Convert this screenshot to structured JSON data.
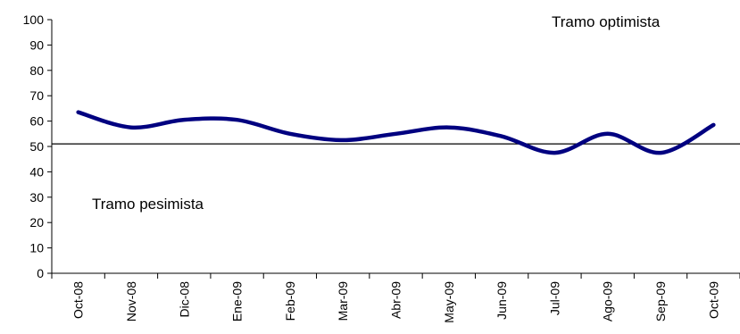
{
  "chart_data": {
    "type": "line",
    "title": "",
    "xlabel": "",
    "ylabel": "",
    "categories": [
      "Oct-08",
      "Nov-08",
      "Dic-08",
      "Ene-09",
      "Feb-09",
      "Mar-09",
      "Abr-09",
      "May-09",
      "Jun-09",
      "Jul-09",
      "Ago-09",
      "Sep-09",
      "Oct-09"
    ],
    "series": [
      {
        "values": [
          63.5,
          57.5,
          60.5,
          60.5,
          55,
          52.5,
          55,
          57.5,
          54,
          47.5,
          55,
          47.5,
          58.5
        ],
        "color": "#000080"
      }
    ],
    "yticks": [
      0,
      10,
      20,
      30,
      40,
      50,
      60,
      70,
      80,
      90,
      100
    ],
    "ylim": [
      0,
      100
    ],
    "reference_line": {
      "value": 51,
      "color": "#000000"
    },
    "annotations": [
      {
        "id": "optimista",
        "text": "Tramo optimista"
      },
      {
        "id": "pesimista",
        "text": "Tramo pesimista"
      }
    ],
    "grid": false,
    "legend": "none"
  }
}
